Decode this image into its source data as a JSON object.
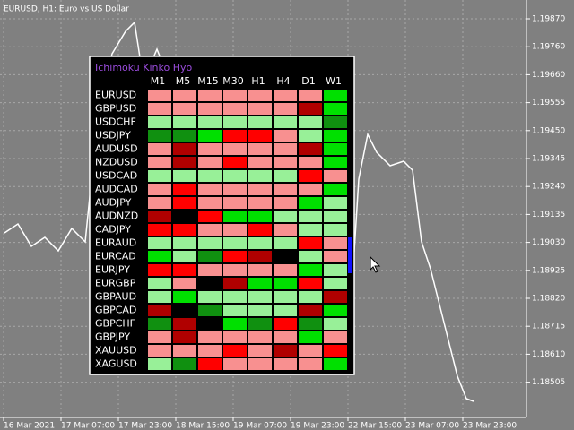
{
  "window_title": "EURUSD, H1:  Euro vs US Dollar",
  "price_axis": [
    "1.19870",
    "1.19760",
    "1.19660",
    "1.19555",
    "1.19450",
    "1.19345",
    "1.19240",
    "1.19135",
    "1.19030",
    "1.18925",
    "1.18820",
    "1.18715",
    "1.18610",
    "1.18505"
  ],
  "time_axis": [
    "16 Mar 2021",
    "17 Mar 07:00",
    "17 Mar 23:00",
    "18 Mar 15:00",
    "19 Mar 07:00",
    "19 Mar 23:00",
    "22 Mar 15:00",
    "23 Mar 07:00",
    "23 Mar 23:00"
  ],
  "panel": {
    "title": "Ichimoku Kinko Hyo",
    "columns": [
      "M1",
      "M5",
      "M15",
      "M30",
      "H1",
      "H4",
      "D1",
      "W1"
    ],
    "palette": {
      "L": "#f89090",
      "R": "#ff0000",
      "DR": "#b00000",
      "K": "#000000",
      "LG": "#98f098",
      "G": "#00e000",
      "DG": "#109010"
    },
    "rows": [
      {
        "symbol": "EURUSD",
        "cells": [
          "L",
          "L",
          "L",
          "L",
          "L",
          "L",
          "L",
          "G"
        ]
      },
      {
        "symbol": "GBPUSD",
        "cells": [
          "L",
          "L",
          "L",
          "L",
          "L",
          "L",
          "DR",
          "G"
        ]
      },
      {
        "symbol": "USDCHF",
        "cells": [
          "LG",
          "LG",
          "LG",
          "LG",
          "LG",
          "LG",
          "LG",
          "DG"
        ]
      },
      {
        "symbol": "USDJPY",
        "cells": [
          "DG",
          "DG",
          "G",
          "R",
          "R",
          "L",
          "LG",
          "G"
        ]
      },
      {
        "symbol": "AUDUSD",
        "cells": [
          "L",
          "DR",
          "L",
          "L",
          "L",
          "L",
          "DR",
          "G"
        ]
      },
      {
        "symbol": "NZDUSD",
        "cells": [
          "L",
          "DR",
          "L",
          "R",
          "L",
          "L",
          "L",
          "G"
        ]
      },
      {
        "symbol": "USDCAD",
        "cells": [
          "LG",
          "LG",
          "LG",
          "LG",
          "LG",
          "LG",
          "R",
          "L"
        ]
      },
      {
        "symbol": "AUDCAD",
        "cells": [
          "L",
          "R",
          "L",
          "L",
          "L",
          "L",
          "L",
          "G"
        ]
      },
      {
        "symbol": "AUDJPY",
        "cells": [
          "L",
          "R",
          "L",
          "L",
          "L",
          "L",
          "G",
          "LG"
        ]
      },
      {
        "symbol": "AUDNZD",
        "cells": [
          "DR",
          "K",
          "R",
          "G",
          "G",
          "LG",
          "LG",
          "LG"
        ]
      },
      {
        "symbol": "CADJPY",
        "cells": [
          "R",
          "R",
          "L",
          "L",
          "R",
          "L",
          "LG",
          "LG"
        ]
      },
      {
        "symbol": "EURAUD",
        "cells": [
          "LG",
          "LG",
          "LG",
          "LG",
          "LG",
          "LG",
          "R",
          "L"
        ]
      },
      {
        "symbol": "EURCAD",
        "cells": [
          "G",
          "LG",
          "DG",
          "R",
          "DR",
          "K",
          "LG",
          "L"
        ]
      },
      {
        "symbol": "EURJPY",
        "cells": [
          "R",
          "R",
          "L",
          "L",
          "L",
          "L",
          "G",
          "LG"
        ]
      },
      {
        "symbol": "EURGBP",
        "cells": [
          "LG",
          "L",
          "K",
          "DR",
          "G",
          "G",
          "R",
          "LG"
        ]
      },
      {
        "symbol": "GBPAUD",
        "cells": [
          "LG",
          "G",
          "LG",
          "LG",
          "LG",
          "LG",
          "LG",
          "DR"
        ]
      },
      {
        "symbol": "GBPCAD",
        "cells": [
          "DR",
          "K",
          "DG",
          "LG",
          "LG",
          "LG",
          "DR",
          "G"
        ]
      },
      {
        "symbol": "GBPCHF",
        "cells": [
          "DG",
          "DR",
          "K",
          "G",
          "DG",
          "R",
          "DG",
          "LG"
        ]
      },
      {
        "symbol": "GBPJPY",
        "cells": [
          "L",
          "DR",
          "L",
          "L",
          "L",
          "L",
          "G",
          "L"
        ]
      },
      {
        "symbol": "XAUUSD",
        "cells": [
          "L",
          "L",
          "L",
          "R",
          "L",
          "DR",
          "L",
          "R"
        ]
      },
      {
        "symbol": "XAGUSD",
        "cells": [
          "LG",
          "DG",
          "R",
          "L",
          "L",
          "L",
          "L",
          "G"
        ]
      }
    ]
  }
}
